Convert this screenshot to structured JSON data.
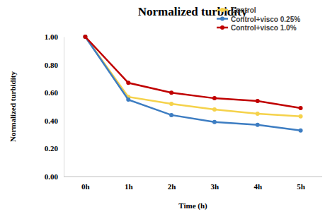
{
  "chart_data": {
    "type": "line",
    "title": "Normalized turbidity",
    "x_label": "Time (h)",
    "y_label": "Normalized turbidity",
    "categories": [
      "0h",
      "1h",
      "2h",
      "3h",
      "4h",
      "5h"
    ],
    "series": [
      {
        "name": "Control",
        "color": "#f5d24b",
        "marker": "circle",
        "line_style": "solid",
        "values": [
          1.0,
          0.57,
          0.52,
          0.48,
          0.45,
          0.43
        ]
      },
      {
        "name": "Control+visco 0.25%",
        "color": "#3d7dc2",
        "marker": "circle",
        "line_style": "solid",
        "values": [
          1.0,
          0.55,
          0.44,
          0.39,
          0.37,
          0.33
        ]
      },
      {
        "name": "Control+visco 1.0%",
        "color": "#c00000",
        "marker": "circle",
        "line_style": "solid",
        "values": [
          1.0,
          0.67,
          0.6,
          0.56,
          0.54,
          0.49
        ]
      }
    ],
    "ylim": [
      0,
      1
    ],
    "yticks": [
      {
        "value": 0,
        "label": "0.00"
      },
      {
        "value": 0.2,
        "label": "0.20"
      },
      {
        "value": 0.4,
        "label": "0.40"
      },
      {
        "value": 0.6,
        "label": "0.60"
      },
      {
        "value": 0.8,
        "label": "0.80"
      },
      {
        "value": 1,
        "label": "1.00"
      }
    ],
    "grid": false,
    "legend": "top-right"
  }
}
